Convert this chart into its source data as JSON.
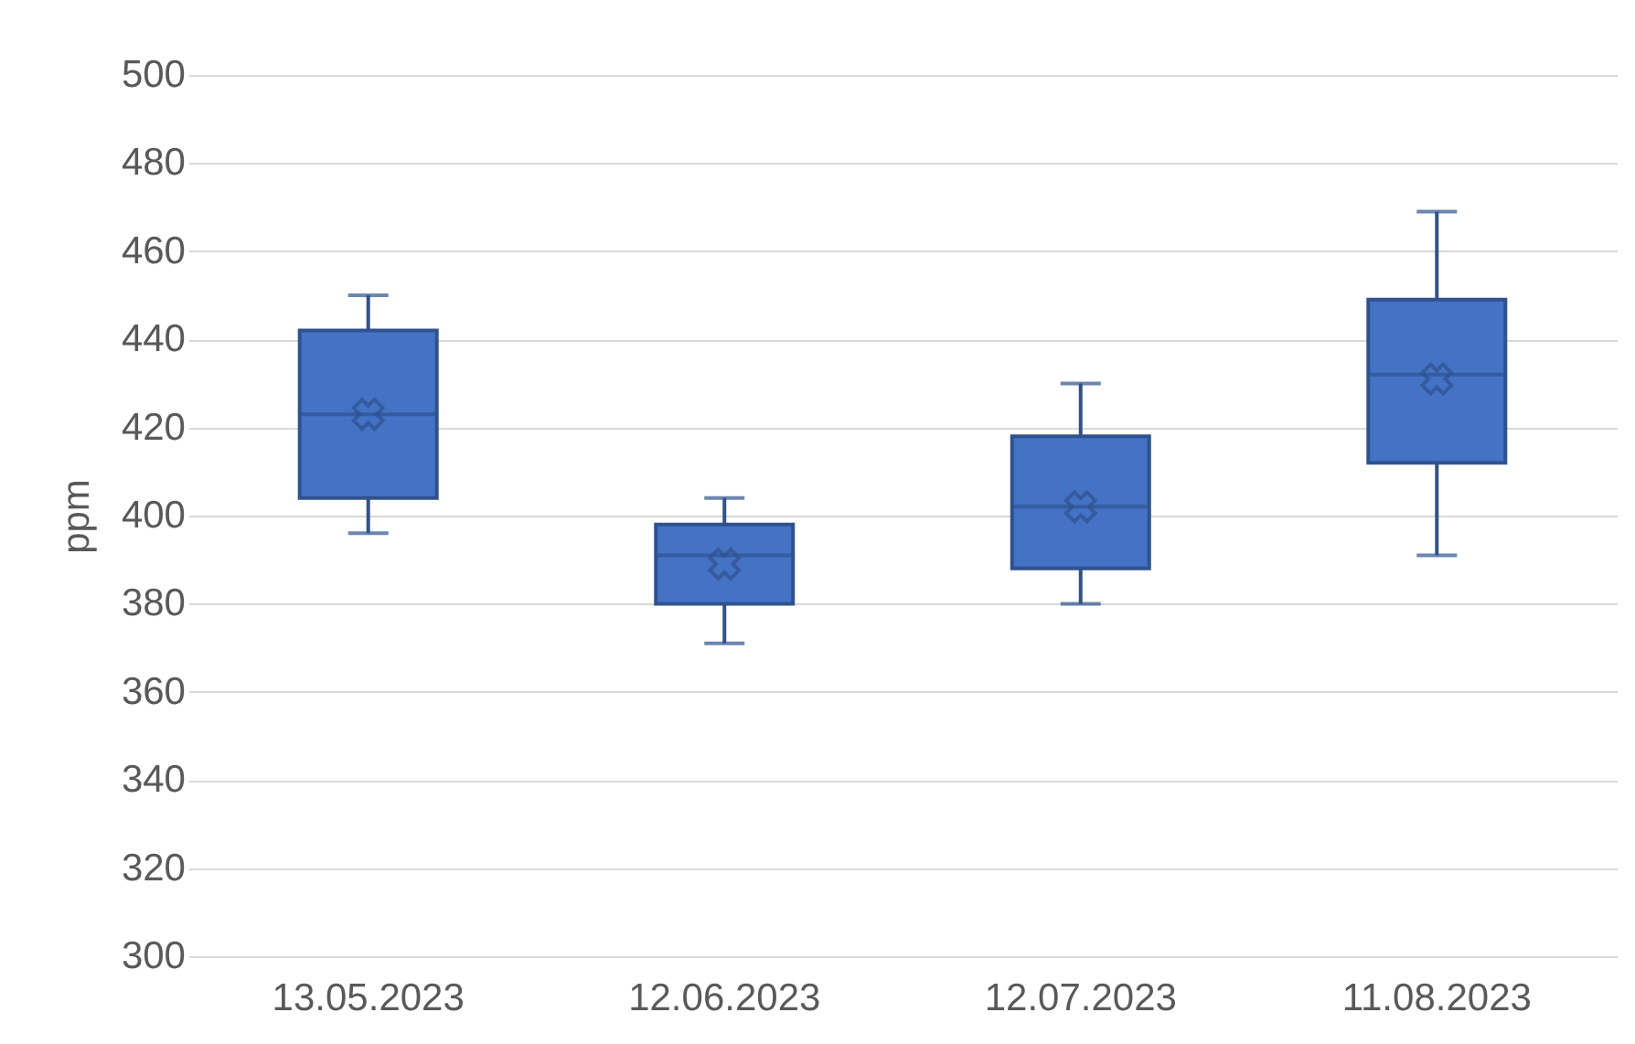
{
  "chart_data": {
    "type": "box",
    "ylabel": "ppm",
    "categories": [
      "13.05.2023",
      "12.06.2023",
      "12.07.2023",
      "11.08.2023"
    ],
    "boxes": [
      {
        "low": 396,
        "q1": 404,
        "median": 423,
        "q3": 442,
        "high": 450,
        "mean": 423
      },
      {
        "low": 371,
        "q1": 380,
        "median": 391,
        "q3": 398,
        "high": 404,
        "mean": 389
      },
      {
        "low": 380,
        "q1": 388,
        "median": 402,
        "q3": 418,
        "high": 430,
        "mean": 402
      },
      {
        "low": 391,
        "q1": 412,
        "median": 432,
        "q3": 449,
        "high": 469,
        "mean": 431
      }
    ],
    "color": "#4472c4",
    "ylim": [
      300,
      500
    ],
    "yticks": [
      300,
      320,
      340,
      360,
      380,
      400,
      420,
      440,
      460,
      480,
      500
    ],
    "grid": "y"
  }
}
